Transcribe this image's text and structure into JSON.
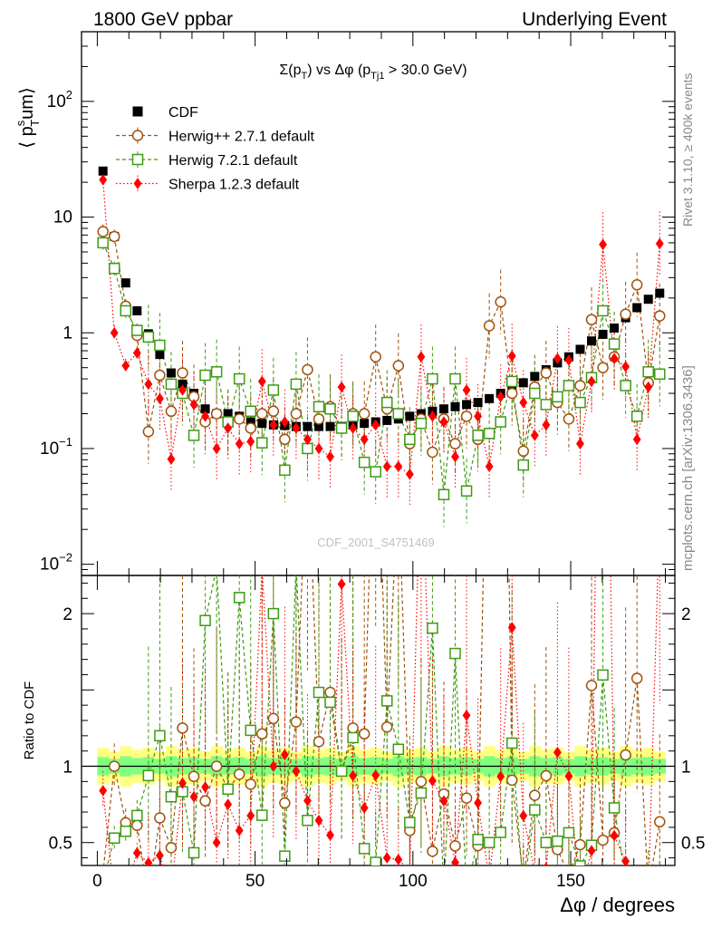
{
  "header": {
    "left": "1800 GeV ppbar",
    "right": "Underlying Event"
  },
  "side_labels": {
    "rivet": "Rivet 3.1.10, ≥ 400k events",
    "mcplots": "mcplots.cern.ch [arXiv:1306.3436]"
  },
  "colors": {
    "cdf": "#000000",
    "herwigpp": "#a0520a",
    "herwig7": "#3d9b12",
    "sherpa": "#ff0000",
    "band_yellow": "#ffff80",
    "band_green": "#80ff80"
  },
  "chart_data": [
    {
      "type": "scatter",
      "panel": "main",
      "title": "Σ(pT) vs Δφ (pTj1 > 30.0 GeV)",
      "title_parts": {
        "sigma": "Σ(p",
        "sub_T": "T",
        "mid": ") vs Δφ (p",
        "sub_Tj1": "Tj1",
        "end": " > 30.0 GeV)"
      },
      "ylabel": "⟨ psTum⟩",
      "ylabel_parts": {
        "open": "⟨ p",
        "sup": "s",
        "sub": "T",
        "close": "um⟩"
      },
      "xlabel": "Δφ / degrees",
      "yscale": "log",
      "xlim": [
        -5,
        183
      ],
      "ylim": [
        0.008,
        400
      ],
      "yticks": [
        {
          "v": 0.01,
          "base": "10",
          "exp": "−2"
        },
        {
          "v": 0.1,
          "base": "10",
          "exp": "−1"
        },
        {
          "v": 1,
          "base": "1",
          "exp": ""
        },
        {
          "v": 10,
          "base": "10",
          "exp": ""
        },
        {
          "v": 100,
          "base": "10",
          "exp": "2"
        }
      ],
      "watermark": "CDF_2001_S4751469",
      "legend": [
        {
          "key": "cdf",
          "label": "CDF"
        },
        {
          "key": "herwigpp",
          "label": "Herwig++ 2.7.1 default"
        },
        {
          "key": "herwig7",
          "label": "Herwig 7.2.1 default"
        },
        {
          "key": "sherpa",
          "label": "Sherpa 1.2.3 default"
        }
      ],
      "x": [
        1.8,
        5.4,
        9,
        12.6,
        16.2,
        19.8,
        23.4,
        27,
        30.6,
        34.2,
        37.8,
        41.4,
        45,
        48.6,
        52.2,
        55.8,
        59.4,
        63,
        66.6,
        70.2,
        73.8,
        77.4,
        81,
        84.6,
        88.2,
        91.8,
        95.4,
        99,
        102.6,
        106.2,
        109.8,
        113.4,
        117,
        120.6,
        124.2,
        127.8,
        131.4,
        135,
        138.6,
        142.2,
        145.8,
        149.4,
        153,
        156.6,
        160.2,
        163.8,
        167.4,
        171,
        174.6,
        178.2
      ],
      "series": [
        {
          "key": "cdf",
          "name": "CDF",
          "marker": "filled-square",
          "values": [
            25,
            6.8,
            2.7,
            1.55,
            0.98,
            0.65,
            0.45,
            0.36,
            0.3,
            0.22,
            0.2,
            0.2,
            0.19,
            0.17,
            0.165,
            0.16,
            0.158,
            0.155,
            0.155,
            0.155,
            0.155,
            0.155,
            0.16,
            0.165,
            0.17,
            0.175,
            0.18,
            0.19,
            0.2,
            0.21,
            0.22,
            0.23,
            0.24,
            0.25,
            0.27,
            0.3,
            0.33,
            0.37,
            0.42,
            0.48,
            0.55,
            0.62,
            0.72,
            0.85,
            0.97,
            1.1,
            1.35,
            1.65,
            1.95,
            2.2
          ]
        },
        {
          "key": "herwigpp",
          "name": "Herwig++ 2.7.1 default",
          "marker": "open-circle",
          "values": [
            7.5,
            6.8,
            1.7,
            0.95,
            0.14,
            0.43,
            0.21,
            0.45,
            0.28,
            0.17,
            0.2,
            0.17,
            0.18,
            0.15,
            0.2,
            0.21,
            0.12,
            0.2,
            0.48,
            0.18,
            0.23,
            0.15,
            0.2,
            0.2,
            0.62,
            0.22,
            0.52,
            0.11,
            0.18,
            0.093,
            0.18,
            0.11,
            0.19,
            0.12,
            1.15,
            1.85,
            0.3,
            0.095,
            0.34,
            0.45,
            0.25,
            0.18,
            0.35,
            1.3,
            0.5,
            0.62,
            1.45,
            2.6,
            0.37,
            1.4
          ]
        },
        {
          "key": "herwig7",
          "name": "Herwig 7.2.1 default",
          "marker": "open-square",
          "values": [
            6,
            3.6,
            1.55,
            1.05,
            0.92,
            0.78,
            0.36,
            0.3,
            0.13,
            0.43,
            0.46,
            0.17,
            0.4,
            0.21,
            0.112,
            0.32,
            0.065,
            0.36,
            0.1,
            0.23,
            0.22,
            0.15,
            0.19,
            0.076,
            0.063,
            0.25,
            0.2,
            0.12,
            0.165,
            0.4,
            0.04,
            0.4,
            0.043,
            0.13,
            0.135,
            0.17,
            0.38,
            0.072,
            0.3,
            0.24,
            0.28,
            0.35,
            0.25,
            0.41,
            1.55,
            0.8,
            0.35,
            0.19,
            0.46,
            0.44
          ]
        },
        {
          "key": "sherpa",
          "name": "Sherpa 1.2.3 default",
          "marker": "filled-diamond",
          "values": [
            21,
            1.0,
            0.52,
            0.67,
            0.36,
            0.27,
            0.081,
            0.32,
            0.24,
            0.19,
            0.1,
            0.15,
            0.11,
            0.115,
            0.38,
            0.16,
            0.17,
            0.15,
            0.12,
            0.1,
            0.085,
            0.34,
            0.15,
            0.12,
            0.16,
            0.07,
            0.07,
            0.06,
            0.62,
            0.19,
            0.17,
            0.085,
            0.32,
            0.19,
            0.07,
            0.28,
            0.63,
            0.25,
            0.13,
            0.16,
            0.6,
            0.58,
            0.11,
            0.38,
            5.8,
            0.6,
            0.51,
            0.12,
            0.34,
            5.9
          ]
        }
      ]
    },
    {
      "type": "scatter",
      "panel": "ratio",
      "ylabel": "Ratio to CDF",
      "xlabel": "Δφ / degrees",
      "xlim": [
        -5,
        183
      ],
      "ylim": [
        0.35,
        2.25
      ],
      "yticks": [
        0.5,
        1,
        2
      ],
      "xticks": [
        0,
        50,
        100,
        150
      ],
      "band_green_halfwidth": 0.06,
      "band_yellow_halfwidth": 0.12
    }
  ]
}
